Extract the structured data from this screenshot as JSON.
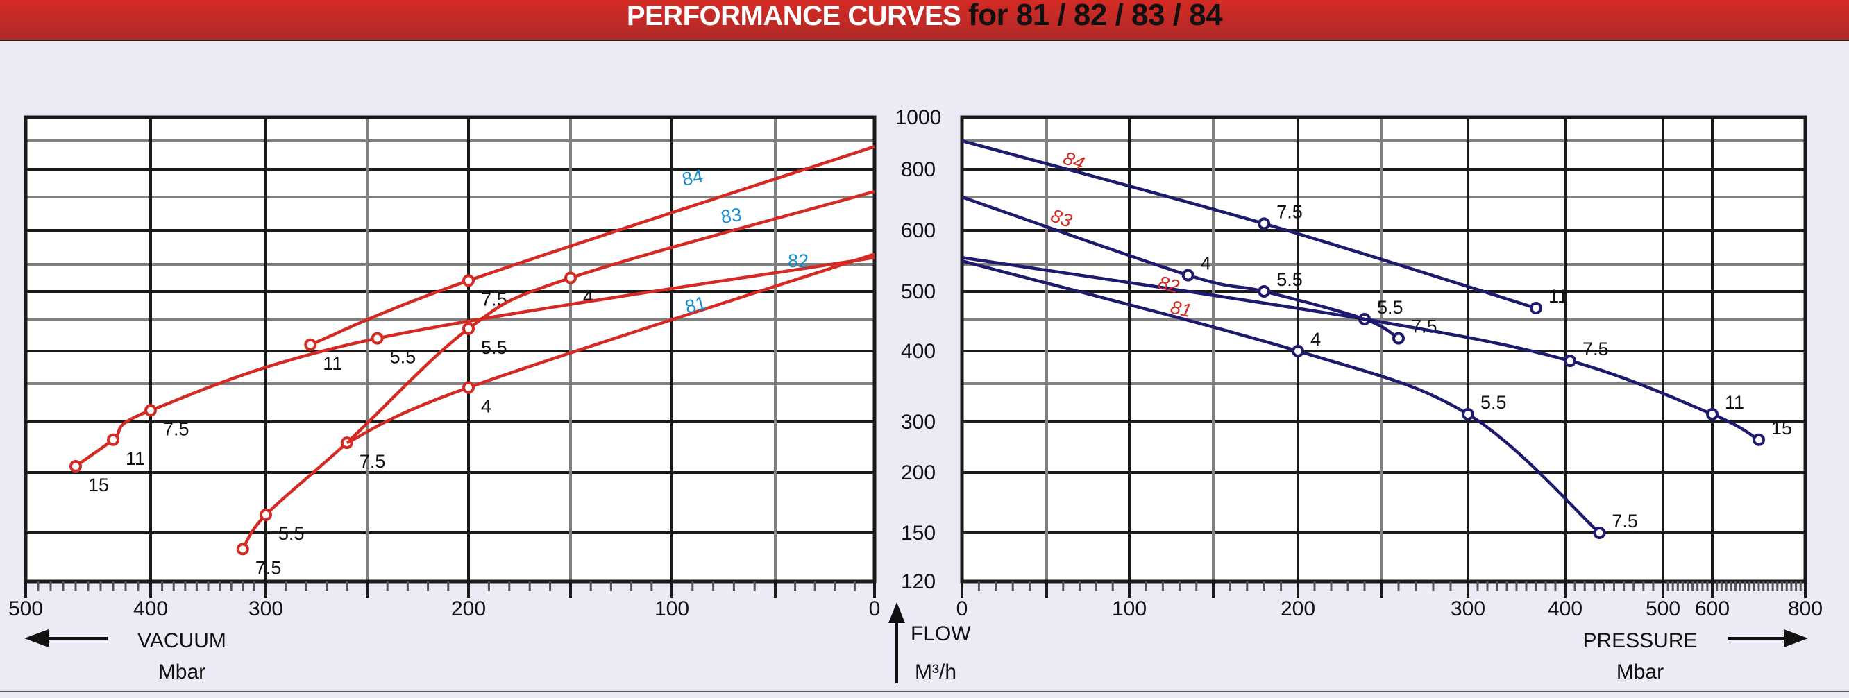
{
  "header": {
    "title_part1": "PERFORMANCE CURVES",
    "title_part2": "for 81 / 82 / 83 / 84",
    "bg_color": "#cf2a25"
  },
  "axes": {
    "left_xlabel": "VACUUM",
    "left_xunit": "Mbar",
    "center_ylabel": "FLOW",
    "center_yunit": "M³/h",
    "right_xlabel": "PRESSURE",
    "right_xunit": "Mbar",
    "left_xticks": [
      "500",
      "400",
      "300",
      "200",
      "100",
      "0"
    ],
    "right_xticks": [
      "0",
      "100",
      "200",
      "300",
      "400",
      "500",
      "600",
      "800"
    ],
    "yticks": [
      "1000",
      "800",
      "600",
      "500",
      "400",
      "300",
      "200",
      "150",
      "120"
    ]
  },
  "colors": {
    "vacuum_curve": "#d42a24",
    "pressure_curve": "#1e1a6e",
    "vacuum_model_label": "#1a8fd0",
    "pressure_model_label": "#d42a24"
  },
  "chart_data": [
    {
      "type": "line",
      "title": "Vacuum performance",
      "xlabel": "VACUUM Mbar",
      "ylabel": "FLOW M³/h",
      "xlim": [
        500,
        0
      ],
      "ylim": [
        120,
        1000
      ],
      "yscale": "nonlinear",
      "grid": true,
      "series": [
        {
          "name": "84",
          "points": [
            {
              "x": 278,
              "y": 410,
              "kw": "11"
            },
            {
              "x": 200,
              "y": 520,
              "kw": "7.5"
            },
            {
              "x": 0,
              "y": 880
            }
          ]
        },
        {
          "name": "83",
          "points": [
            {
              "x": 320,
              "y": 140,
              "kw": "7.5"
            },
            {
              "x": 300,
              "y": 165,
              "kw": "5.5"
            },
            {
              "x": 260,
              "y": 265,
              "kw": "7.5"
            },
            {
              "x": 200,
              "y": 435,
              "kw": "5.5"
            },
            {
              "x": 150,
              "y": 525,
              "kw": "4"
            },
            {
              "x": 0,
              "y": 720
            }
          ]
        },
        {
          "name": "82",
          "points": [
            {
              "x": 460,
              "y": 215,
              "kw": "15"
            },
            {
              "x": 430,
              "y": 270,
              "kw": "11"
            },
            {
              "x": 400,
              "y": 315,
              "kw": "7.5"
            },
            {
              "x": 245,
              "y": 420,
              "kw": "5.5"
            },
            {
              "x": 0,
              "y": 560
            }
          ]
        },
        {
          "name": "81",
          "points": [
            {
              "x": 260,
              "y": 265
            },
            {
              "x": 200,
              "y": 345,
              "kw": "4"
            },
            {
              "x": 0,
              "y": 565
            }
          ]
        }
      ]
    },
    {
      "type": "line",
      "title": "Pressure performance",
      "xlabel": "PRESSURE Mbar",
      "ylabel": "FLOW M³/h",
      "xlim": [
        0,
        800
      ],
      "ylim": [
        120,
        1000
      ],
      "yscale": "nonlinear",
      "grid": true,
      "series": [
        {
          "name": "84",
          "points": [
            {
              "x": 0,
              "y": 900
            },
            {
              "x": 180,
              "y": 620,
              "kw": "7.5"
            },
            {
              "x": 370,
              "y": 470,
              "kw": "11"
            }
          ]
        },
        {
          "name": "83",
          "points": [
            {
              "x": 0,
              "y": 700
            },
            {
              "x": 135,
              "y": 530,
              "kw": "4"
            },
            {
              "x": 180,
              "y": 500,
              "kw": "5.5"
            },
            {
              "x": 240,
              "y": 450,
              "kw": "5.5"
            },
            {
              "x": 260,
              "y": 420,
              "kw": "7.5"
            }
          ]
        },
        {
          "name": "82",
          "points": [
            {
              "x": 0,
              "y": 560
            },
            {
              "x": 240,
              "y": 450
            },
            {
              "x": 405,
              "y": 385,
              "kw": "7.5"
            },
            {
              "x": 600,
              "y": 310,
              "kw": "11"
            },
            {
              "x": 700,
              "y": 270,
              "kw": "15"
            }
          ]
        },
        {
          "name": "81",
          "points": [
            {
              "x": 0,
              "y": 555
            },
            {
              "x": 200,
              "y": 400,
              "kw": "4"
            },
            {
              "x": 300,
              "y": 310,
              "kw": "5.5"
            },
            {
              "x": 435,
              "y": 150,
              "kw": "7.5"
            }
          ]
        }
      ]
    }
  ]
}
